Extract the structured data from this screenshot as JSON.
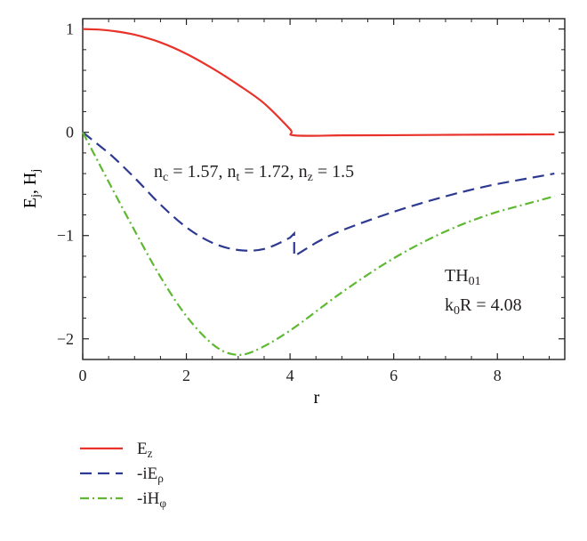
{
  "chart_data": {
    "type": "line",
    "xlabel": "r",
    "ylabel": {
      "main": "E",
      "sub1": "j",
      "sep": ", H",
      "sub2": "j"
    },
    "xlim": [
      0,
      9.3
    ],
    "ylim": [
      -2.2,
      1.1
    ],
    "xticks": [
      0,
      2,
      4,
      6,
      8
    ],
    "yticks": [
      1,
      0,
      -1,
      -2
    ],
    "ytick_labels": [
      "1",
      "0",
      "−1",
      "−2"
    ],
    "grid": false,
    "legend_position": "below",
    "annotations": {
      "params": {
        "nc": "n",
        "nc_sub": "c",
        "nc_val": " = 1.57, n",
        "nt_sub": "t",
        "nt_val": " = 1.72, n",
        "nz_sub": "z",
        "nz_val": " = 1.5"
      },
      "mode": {
        "main": "TH",
        "sub": "01"
      },
      "k0R": {
        "main": "k",
        "sub": "0",
        "val": "R = 4.08"
      }
    },
    "series": [
      {
        "name": "E",
        "name_sub": "z",
        "color": "#e8322a",
        "dash": "solid",
        "points": [
          [
            0,
            1.0
          ],
          [
            0.3,
            0.995
          ],
          [
            0.6,
            0.98
          ],
          [
            1.0,
            0.945
          ],
          [
            1.5,
            0.87
          ],
          [
            2.0,
            0.76
          ],
          [
            2.5,
            0.62
          ],
          [
            3.0,
            0.46
          ],
          [
            3.5,
            0.28
          ],
          [
            4.0,
            0.03
          ],
          [
            4.08,
            -0.03
          ],
          [
            5.0,
            -0.03
          ],
          [
            6.0,
            -0.028
          ],
          [
            7.0,
            -0.025
          ],
          [
            8.0,
            -0.022
          ],
          [
            9.1,
            -0.02
          ]
        ]
      },
      {
        "name": "-iE",
        "name_sub": "ρ",
        "color": "#2e3a92",
        "dash": "dashed",
        "points": [
          [
            0,
            0.0
          ],
          [
            0.5,
            -0.2
          ],
          [
            1.0,
            -0.44
          ],
          [
            1.5,
            -0.7
          ],
          [
            2.0,
            -0.92
          ],
          [
            2.5,
            -1.07
          ],
          [
            3.0,
            -1.14
          ],
          [
            3.5,
            -1.13
          ],
          [
            4.0,
            -1.02
          ],
          [
            4.08,
            -0.98
          ],
          [
            4.08,
            -1.2
          ],
          [
            4.5,
            -1.07
          ],
          [
            5.0,
            -0.95
          ],
          [
            6.0,
            -0.77
          ],
          [
            7.0,
            -0.62
          ],
          [
            8.0,
            -0.5
          ],
          [
            9.1,
            -0.4
          ]
        ]
      },
      {
        "name": "-iH",
        "name_sub": "φ",
        "color": "#5fb832",
        "dash": "dashdot",
        "points": [
          [
            0,
            0.0
          ],
          [
            0.5,
            -0.48
          ],
          [
            1.0,
            -0.95
          ],
          [
            1.5,
            -1.4
          ],
          [
            2.0,
            -1.78
          ],
          [
            2.5,
            -2.05
          ],
          [
            2.9,
            -2.15
          ],
          [
            3.3,
            -2.12
          ],
          [
            4.0,
            -1.92
          ],
          [
            5.0,
            -1.55
          ],
          [
            6.0,
            -1.22
          ],
          [
            7.0,
            -0.96
          ],
          [
            8.0,
            -0.77
          ],
          [
            9.1,
            -0.62
          ]
        ]
      }
    ]
  }
}
